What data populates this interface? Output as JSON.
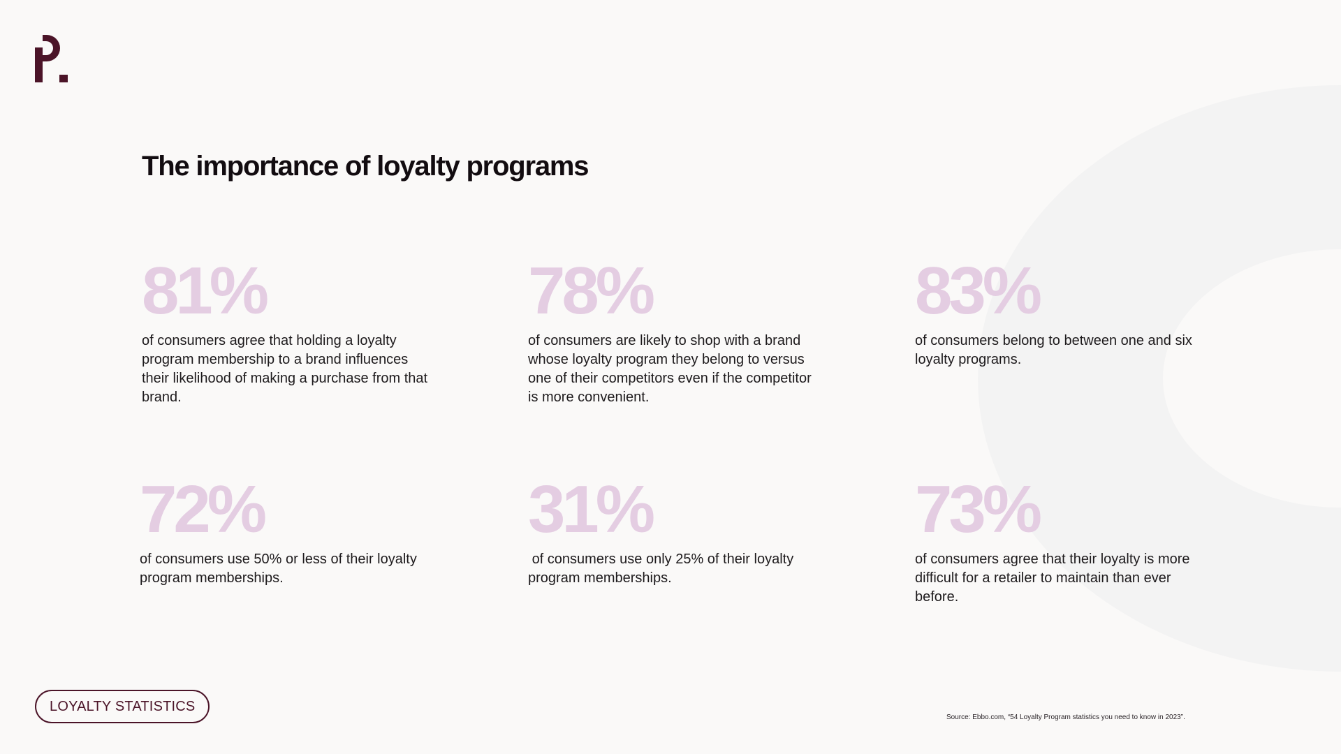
{
  "brand": {
    "logo_icon": "p-dot-logo-icon",
    "color": "#4b1428"
  },
  "title": "The importance of loyalty programs",
  "stats": [
    {
      "value": "81%",
      "description": "of consumers agree that holding a loyalty program membership to a brand influences their likelihood of making a purchase from that brand."
    },
    {
      "value": "78%",
      "description": "of consumers are likely to shop with a brand whose loyalty program they belong to versus one of their competitors even if the competitor is more convenient."
    },
    {
      "value": "83%",
      "description": "of consumers belong to between one and six loyalty programs."
    },
    {
      "value": "72%",
      "description": "of consumers use 50% or less of their loyalty program memberships."
    },
    {
      "value": "31%",
      "description": " of consumers use only 25% of their loyalty program memberships."
    },
    {
      "value": "73%",
      "description": "of consumers agree that their loyalty is more difficult for a retailer to maintain than ever before."
    }
  ],
  "tag_label": "LOYALTY STATISTICS",
  "source": "Source: Ebbo.com, “54 Loyalty Program statistics you need to know in 2023”.",
  "colors": {
    "background": "#faf9f8",
    "stat_accent": "#e4cde2",
    "decorative_shape": "#f3f3f3",
    "text": "#1d1a1c"
  }
}
